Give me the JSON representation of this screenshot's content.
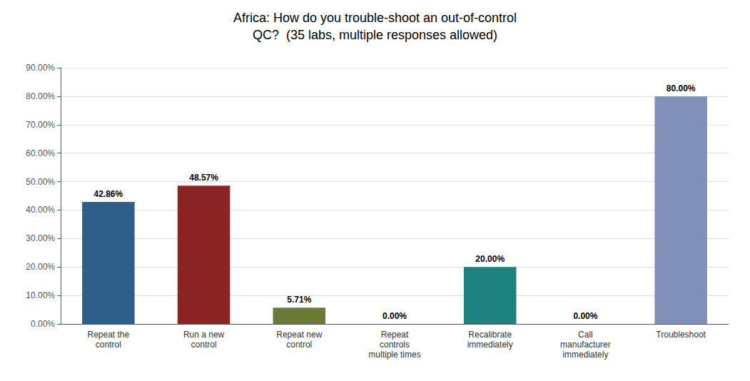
{
  "chart_data": {
    "type": "bar",
    "title": "Africa: How do you trouble-shoot an out-of-control\nQC?  (35 labs, multiple responses allowed)",
    "categories": [
      "Repeat the\ncontrol",
      "Run a new\ncontrol",
      "Repeat new\ncontrol",
      "Repeat\ncontrols\nmultiple times",
      "Recalibrate\nimmediately",
      "Call\nmanufacturer\nimmediately",
      "Troubleshoot"
    ],
    "values": [
      42.86,
      48.57,
      5.71,
      0.0,
      20.0,
      0.0,
      80.0
    ],
    "value_labels": [
      "42.86%",
      "48.57%",
      "5.71%",
      "0.00%",
      "20.00%",
      "0.00%",
      "80.00%"
    ],
    "colors": [
      "#2E5F8A",
      "#8B2525",
      "#6B7A35",
      "#6B7A35",
      "#1F8080",
      "#1F8080",
      "#8090B8"
    ],
    "ylim": [
      0,
      90
    ],
    "yticks": [
      {
        "value": 0,
        "label": "0.00%"
      },
      {
        "value": 10,
        "label": "10.00%"
      },
      {
        "value": 20,
        "label": "20.00%"
      },
      {
        "value": 30,
        "label": "30.00%"
      },
      {
        "value": 40,
        "label": "40.00%"
      },
      {
        "value": 50,
        "label": "50.00%"
      },
      {
        "value": 60,
        "label": "60.00%"
      },
      {
        "value": 70,
        "label": "70.00%"
      },
      {
        "value": 80,
        "label": "80.00%"
      },
      {
        "value": 90,
        "label": "90.00%"
      }
    ],
    "grid": true,
    "data_labels": true
  }
}
